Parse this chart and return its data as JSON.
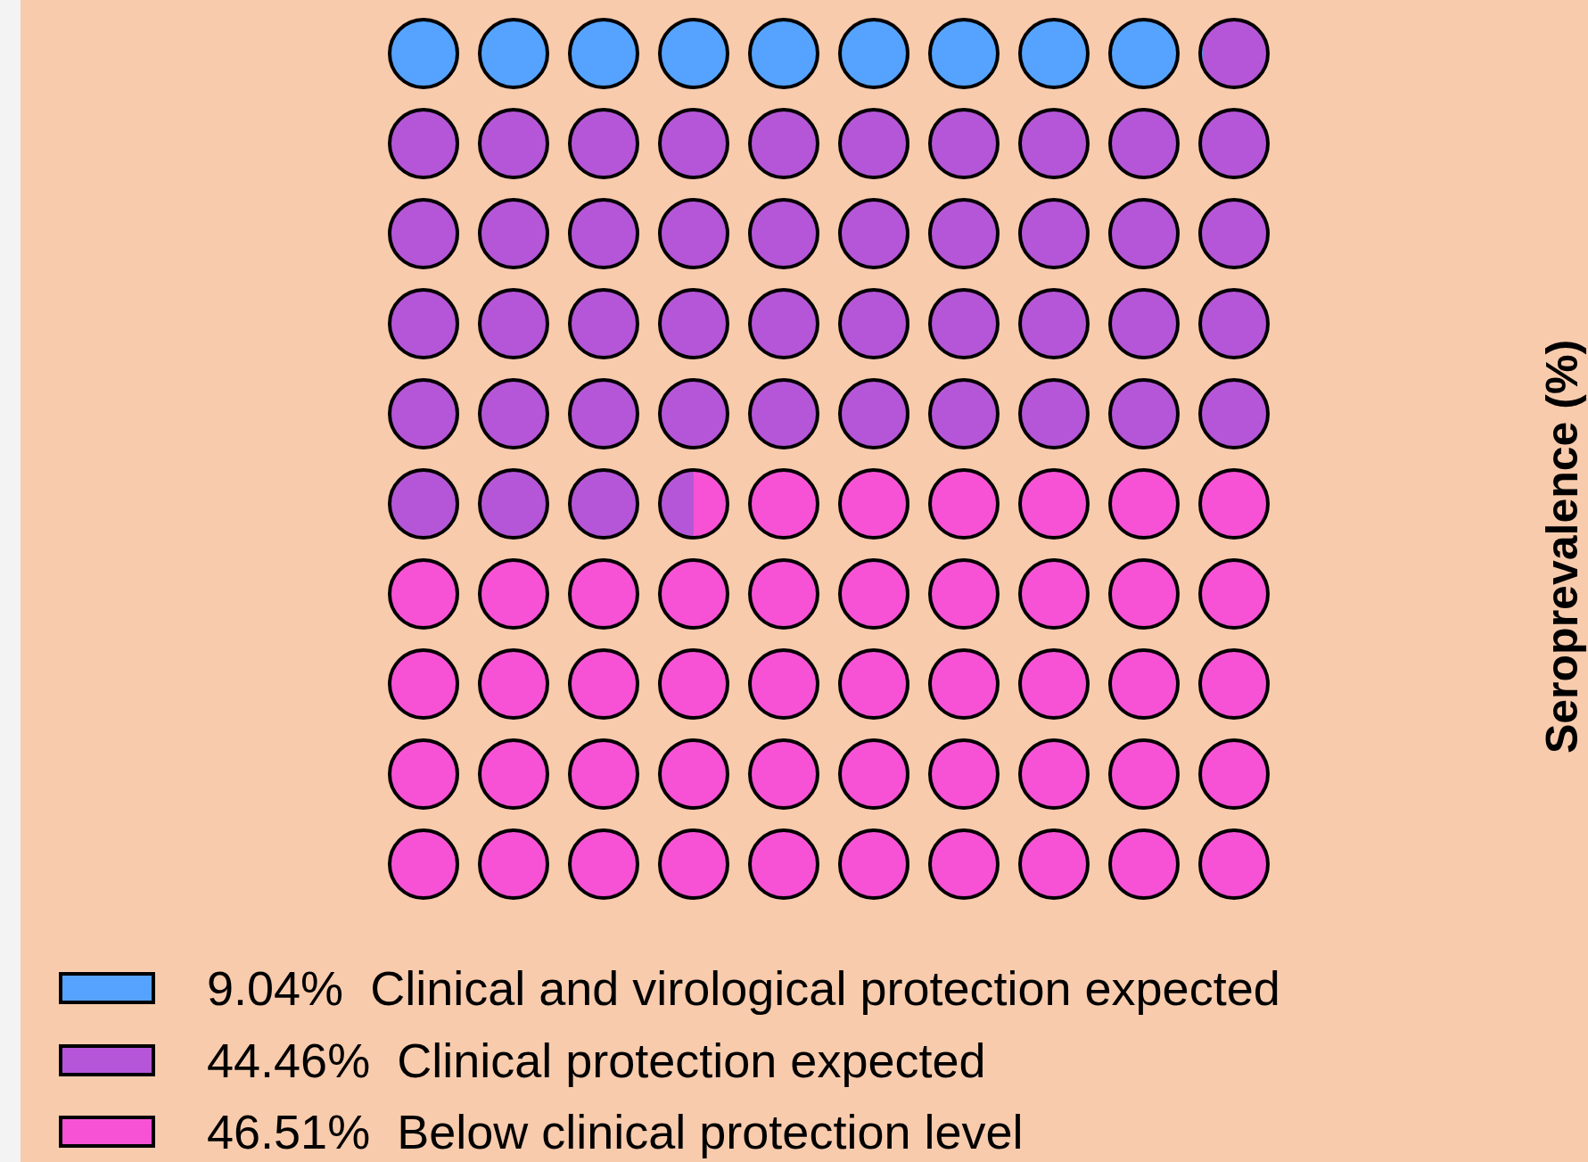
{
  "chart_data": {
    "type": "other",
    "ylabel": "Seroprevalence (%)",
    "categories": [
      "Clinical and virological protection expected",
      "Clinical protection expected",
      "Below clinical protection level"
    ],
    "values": [
      9.04,
      44.46,
      46.51
    ],
    "value_labels": [
      "9.04%",
      "44.46%",
      "46.51%"
    ],
    "colors": [
      "#55a3ff",
      "#b556d8",
      "#f752d6"
    ]
  }
}
